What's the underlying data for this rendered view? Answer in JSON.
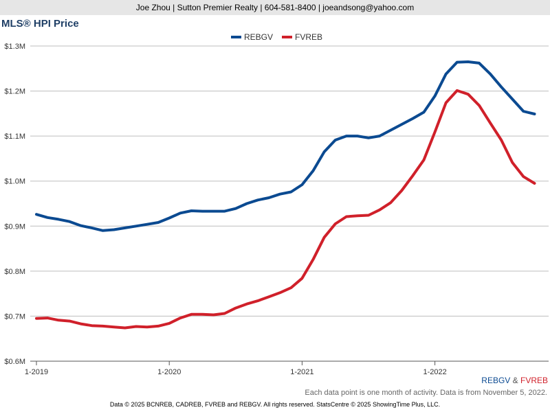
{
  "header": {
    "text": "Joe Zhou | Sutton Premier Realty | 604-581-8400 | joeandsong@yahoo.com"
  },
  "title": "MLS® HPI Price",
  "chart_data": {
    "type": "line",
    "ylim": [
      600000,
      1300000
    ],
    "y_ticks": [
      {
        "value": 600000,
        "label": "$0.6M"
      },
      {
        "value": 700000,
        "label": "$0.7M"
      },
      {
        "value": 800000,
        "label": "$0.8M"
      },
      {
        "value": 900000,
        "label": "$0.9M"
      },
      {
        "value": 1000000,
        "label": "$1.0M"
      },
      {
        "value": 1100000,
        "label": "$1.1M"
      },
      {
        "value": 1200000,
        "label": "$1.2M"
      },
      {
        "value": 1300000,
        "label": "$1.3M"
      }
    ],
    "x_ticks": [
      {
        "index": 0,
        "label": "1-2019"
      },
      {
        "index": 12,
        "label": "1-2020"
      },
      {
        "index": 24,
        "label": "1-2021"
      },
      {
        "index": 36,
        "label": "1-2022"
      }
    ],
    "x_count": 46,
    "grid": true,
    "legend_position": "top-center",
    "series": [
      {
        "name": "REBGV",
        "color": "#0b4a91",
        "values": [
          926000,
          919000,
          915000,
          910000,
          901000,
          896000,
          890000,
          892000,
          896000,
          900000,
          904000,
          908000,
          918000,
          929000,
          934000,
          933000,
          933000,
          933000,
          939000,
          950000,
          958000,
          963000,
          971000,
          976000,
          992000,
          1023000,
          1065000,
          1091000,
          1100000,
          1100000,
          1096000,
          1100000,
          1113000,
          1126000,
          1139000,
          1153000,
          1189000,
          1238000,
          1264000,
          1265000,
          1262000,
          1238000,
          1209000,
          1182000,
          1155000,
          1149000
        ]
      },
      {
        "name": "FVREB",
        "color": "#d0202a",
        "values": [
          695000,
          696000,
          691000,
          689000,
          683000,
          679000,
          678000,
          676000,
          674000,
          677000,
          676000,
          678000,
          684000,
          696000,
          704000,
          704000,
          703000,
          706000,
          718000,
          727000,
          734000,
          743000,
          752000,
          763000,
          784000,
          826000,
          875000,
          905000,
          921000,
          923000,
          924000,
          936000,
          952000,
          979000,
          1012000,
          1047000,
          1109000,
          1174000,
          1201000,
          1193000,
          1168000,
          1129000,
          1091000,
          1041000,
          1010000,
          995000
        ]
      }
    ]
  },
  "brand": {
    "s1": "REBGV",
    "amp": " & ",
    "s2": "FVREB"
  },
  "note": "Each data point is one month of activity. Data is from November 5, 2022.",
  "footer": "Data © 2025 BCNREB, CADREB, FVREB and REBGV. All rights reserved. StatsCentre © 2025 ShowingTime Plus, LLC."
}
